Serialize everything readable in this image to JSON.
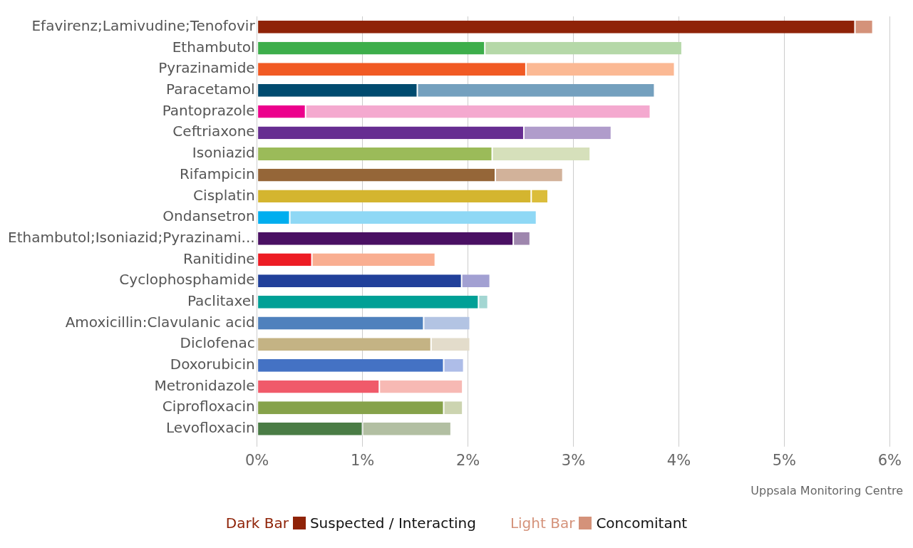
{
  "chart_data": {
    "type": "bar",
    "orientation": "horizontal",
    "stacked": true,
    "categories": [
      "Efavirenz;Lamivudine;Tenofovir",
      "Ethambutol",
      "Pyrazinamide",
      "Paracetamol",
      "Pantoprazole",
      "Ceftriaxone",
      "Isoniazid",
      "Rifampicin",
      "Cisplatin",
      "Ondansetron",
      "Ethambutol;Isoniazid;Pyrazinami...",
      "Ranitidine",
      "Cyclophosphamide",
      "Paclitaxel",
      "Amoxicillin:Clavulanic acid",
      "Diclofenac",
      "Doxorubicin",
      "Metronidazole",
      "Ciprofloxacin",
      "Levofloxacin"
    ],
    "series": [
      {
        "name": "Suspected / Interacting",
        "color": "#8f2308",
        "values": [
          5.67,
          2.16,
          2.55,
          1.52,
          0.46,
          2.53,
          2.23,
          2.26,
          2.6,
          0.31,
          2.43,
          0.52,
          1.94,
          2.1,
          1.58,
          1.65,
          1.77,
          1.16,
          1.77,
          1.0
        ],
        "colors": [
          "#8f2308",
          "#3dae4b",
          "#f15a24",
          "#004b6f",
          "#ec008c",
          "#662d91",
          "#9bbb59",
          "#956638",
          "#d4b52f",
          "#00aeef",
          "#4a1063",
          "#ed1c24",
          "#21409a",
          "#00a096",
          "#4f81bd",
          "#c4b384",
          "#4472c4",
          "#f05a6a",
          "#86a24a",
          "#4a7c45"
        ]
      },
      {
        "name": "Concomitant",
        "color": "#d4927a",
        "values": [
          0.17,
          1.87,
          1.41,
          2.25,
          3.27,
          0.83,
          0.93,
          0.64,
          0.16,
          2.34,
          0.16,
          1.17,
          0.27,
          0.09,
          0.44,
          0.37,
          0.19,
          0.79,
          0.18,
          0.84
        ],
        "colors": [
          "#d4927a",
          "#b5d8a8",
          "#fbb994",
          "#74a0be",
          "#f4a9cf",
          "#b09ccb",
          "#d6e0bb",
          "#d2b29a",
          "#dbbd3b",
          "#8fd8f5",
          "#9e86ad",
          "#f9ae91",
          "#a2a0d2",
          "#a3d6d2",
          "#b3c4e3",
          "#e3dccb",
          "#aebde8",
          "#f7b9b4",
          "#ccd4b0",
          "#b2bfa2"
        ]
      }
    ],
    "xlim": [
      0,
      6
    ],
    "xticks": [
      {
        "value": 0,
        "label": "0%"
      },
      {
        "value": 1,
        "label": "1%"
      },
      {
        "value": 2,
        "label": "2%"
      },
      {
        "value": 3,
        "label": "3%"
      },
      {
        "value": 4,
        "label": "4%"
      },
      {
        "value": 5,
        "label": "5%"
      },
      {
        "value": 6,
        "label": "6%"
      }
    ],
    "grid": "x",
    "legend": "bottom",
    "annotations": [
      "Uppsala Monitoring Centre",
      "Dark Bar",
      "Light Bar"
    ]
  }
}
